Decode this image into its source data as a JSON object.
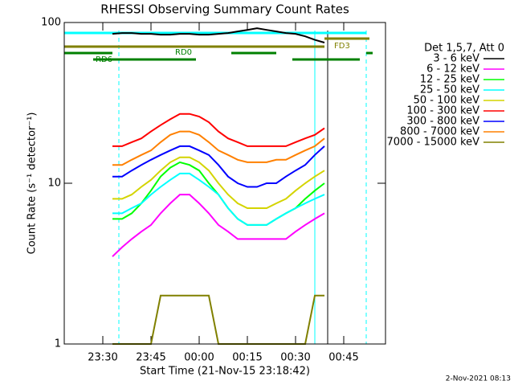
{
  "chart_data": {
    "type": "line",
    "title": "RHESSI Observing Summary Count Rates",
    "x_label": "Start Time (21-Nov-15 23:18:42)",
    "y_label": "Count Rate (s⁻¹ detector⁻¹)",
    "legend_title": "Det 1,5,7, Att 0",
    "footer": "2-Nov-2021 08:13",
    "log_y": true,
    "xlim": [
      "23:18",
      "00:58"
    ],
    "xticks": [
      {
        "value": "23:30",
        "label": "23:30"
      },
      {
        "value": "23:45",
        "label": "23:45"
      },
      {
        "value": "00:00",
        "label": "00:00"
      },
      {
        "value": "00:15",
        "label": "00:15"
      },
      {
        "value": "00:30",
        "label": "00:30"
      },
      {
        "value": "00:45",
        "label": "00:45"
      }
    ],
    "ylim": [
      1,
      100
    ],
    "yticks": [
      1,
      10,
      100
    ],
    "x": [
      "23:33",
      "23:36",
      "23:39",
      "23:42",
      "23:45",
      "23:48",
      "23:51",
      "23:54",
      "23:57",
      "00:00",
      "00:03",
      "00:06",
      "00:09",
      "00:12",
      "00:15",
      "00:18",
      "00:21",
      "00:24",
      "00:27",
      "00:30",
      "00:33",
      "00:36",
      "00:39"
    ],
    "series": [
      {
        "name": "3 - 6 keV",
        "color": "#000000",
        "values": [
          85,
          86,
          86,
          85,
          85,
          84,
          84,
          85,
          85,
          84,
          84,
          85,
          86,
          88,
          90,
          92,
          90,
          88,
          86,
          85,
          82,
          78,
          75
        ]
      },
      {
        "name": "6 - 12 keV",
        "color": "#ff00ff",
        "values": [
          3.5,
          4,
          4.5,
          5,
          5.5,
          6.5,
          7.5,
          8.5,
          8.5,
          7.5,
          6.5,
          5.5,
          5,
          4.5,
          4.5,
          4.5,
          4.5,
          4.5,
          4.5,
          5,
          5.5,
          6,
          6.5
        ]
      },
      {
        "name": "12 - 25 keV",
        "color": "#00ff00",
        "values": [
          6,
          6,
          6.5,
          7.5,
          9,
          11,
          12.5,
          13.5,
          13,
          12,
          10,
          8.5,
          7,
          6,
          5.5,
          5.5,
          5.5,
          6,
          6.5,
          7,
          8,
          9,
          10
        ]
      },
      {
        "name": "25 - 50 keV",
        "color": "#00ffff",
        "values": [
          6.5,
          6.5,
          7,
          7.5,
          8.5,
          9.5,
          10.5,
          11.5,
          11.5,
          10.5,
          9.5,
          8.5,
          7,
          6,
          5.5,
          5.5,
          5.5,
          6,
          6.5,
          7,
          7.5,
          8,
          8.5
        ]
      },
      {
        "name": "50 - 100 keV",
        "color": "#d4d400",
        "values": [
          8,
          8,
          8.5,
          9.5,
          10.5,
          12,
          13.5,
          14.5,
          14.5,
          13.5,
          12,
          10,
          8.5,
          7.5,
          7,
          7,
          7,
          7.5,
          8,
          9,
          10,
          11,
          12
        ]
      },
      {
        "name": "100 - 300 keV",
        "color": "#ff0000",
        "values": [
          17,
          17,
          18,
          19,
          21,
          23,
          25,
          27,
          27,
          26,
          24,
          21,
          19,
          18,
          17,
          17,
          17,
          17,
          17,
          18,
          19,
          20,
          22
        ]
      },
      {
        "name": "300 - 800 keV",
        "color": "#0000ff",
        "values": [
          11,
          11,
          12,
          13,
          14,
          15,
          16,
          17,
          17,
          16,
          15,
          13,
          11,
          10,
          9.5,
          9.5,
          10,
          10,
          11,
          12,
          13,
          15,
          17
        ]
      },
      {
        "name": "800 - 7000 keV",
        "color": "#ff8000",
        "values": [
          13,
          13,
          14,
          15,
          16,
          18,
          20,
          21,
          21,
          20,
          18,
          16,
          15,
          14,
          13.5,
          13.5,
          13.5,
          14,
          14,
          15,
          16,
          17,
          19
        ]
      },
      {
        "name": "7000 - 15000 keV",
        "color": "#808000",
        "values": [
          1,
          1,
          1,
          1,
          1,
          2,
          2,
          2,
          2,
          2,
          2,
          1,
          1,
          1,
          1,
          1,
          1,
          1,
          1,
          1,
          1,
          2,
          2
        ]
      }
    ],
    "vlines": [
      {
        "x": "23:18",
        "color": "#00ffff",
        "dashed": false
      },
      {
        "x": "23:35",
        "color": "#00ffff",
        "dashed": true
      },
      {
        "x": "00:36",
        "color": "#00ffff",
        "dashed": false
      },
      {
        "x": "00:40",
        "color": "#000000",
        "dashed": false
      },
      {
        "x": "00:52",
        "color": "#00ffff",
        "dashed": true
      }
    ],
    "flags": [
      {
        "color": "#00ffff",
        "segments": [
          [
            "23:18",
            "00:52"
          ]
        ]
      },
      {
        "label": "FD3",
        "color": "#808000",
        "segments": [
          [
            "23:18",
            "00:39"
          ],
          [
            "00:39",
            "00:53"
          ]
        ]
      },
      {
        "label": "RD0",
        "color": "#008000",
        "segments": [
          [
            "23:18",
            "23:33"
          ],
          [
            "00:10",
            "00:24"
          ],
          [
            "00:52",
            "00:54"
          ]
        ]
      },
      {
        "label": "RD6",
        "color": "#008000",
        "segments": [
          [
            "23:27",
            "23:59"
          ],
          [
            "00:29",
            "00:50"
          ]
        ]
      }
    ]
  }
}
